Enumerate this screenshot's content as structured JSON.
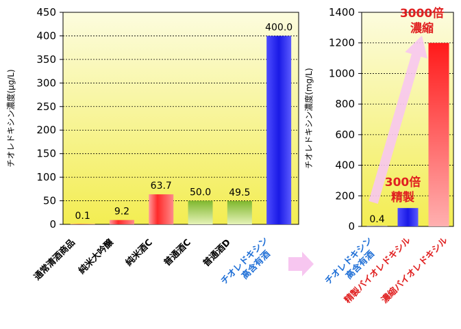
{
  "chart_data": [
    {
      "type": "bar",
      "ylabel": "チオレドキシン濃度(μg/L)",
      "ylim": [
        0,
        450
      ],
      "yticks": [
        0,
        50,
        100,
        150,
        200,
        250,
        300,
        350,
        400,
        450
      ],
      "grid": true,
      "categories": [
        "通常清酒商品",
        "純米大吟醸",
        "純米酒C",
        "普通酒C",
        "普通酒D",
        "チオレドキシン\n高含有酒"
      ],
      "values": [
        0.1,
        9.2,
        63.7,
        50.0,
        49.5,
        400.0
      ],
      "value_labels": [
        "0.1",
        "9.2",
        "63.7",
        "50.0",
        "49.5",
        "400.0"
      ],
      "bar_colors": [
        "#e02020",
        "#e02020",
        "#e02020",
        "#7fb82e",
        "#7fb82e",
        "#2828e0"
      ],
      "category_colors": [
        "#000000",
        "#000000",
        "#000000",
        "#000000",
        "#000000",
        "#1f6fd6"
      ]
    },
    {
      "type": "bar",
      "ylabel": "チオレドキシン濃度(mg/L)",
      "ylim": [
        0,
        1400
      ],
      "yticks": [
        0,
        200,
        400,
        600,
        800,
        1000,
        1200,
        1400
      ],
      "grid": true,
      "categories": [
        "チオレドキシン\n高含有酒",
        "精製バイオレドキシル",
        "濃縮バイオレドキシル"
      ],
      "values": [
        0.4,
        120,
        1200
      ],
      "value_labels": [
        "0.4",
        "",
        ""
      ],
      "bar_colors": [
        "#2828e0",
        "#2828e0",
        "#e02020"
      ],
      "category_colors": [
        "#1f6fd6",
        "#e02020",
        "#e02020"
      ],
      "annotations": [
        {
          "text": "300倍\n精製",
          "color": "#e02020"
        },
        {
          "text": "3000倍\n濃縮",
          "color": "#e02020"
        }
      ]
    }
  ],
  "colors": {
    "plot_bg_top": "#fbfbd4",
    "plot_bg_bottom": "#f4ee55",
    "arrow": "#f7c6f0"
  }
}
